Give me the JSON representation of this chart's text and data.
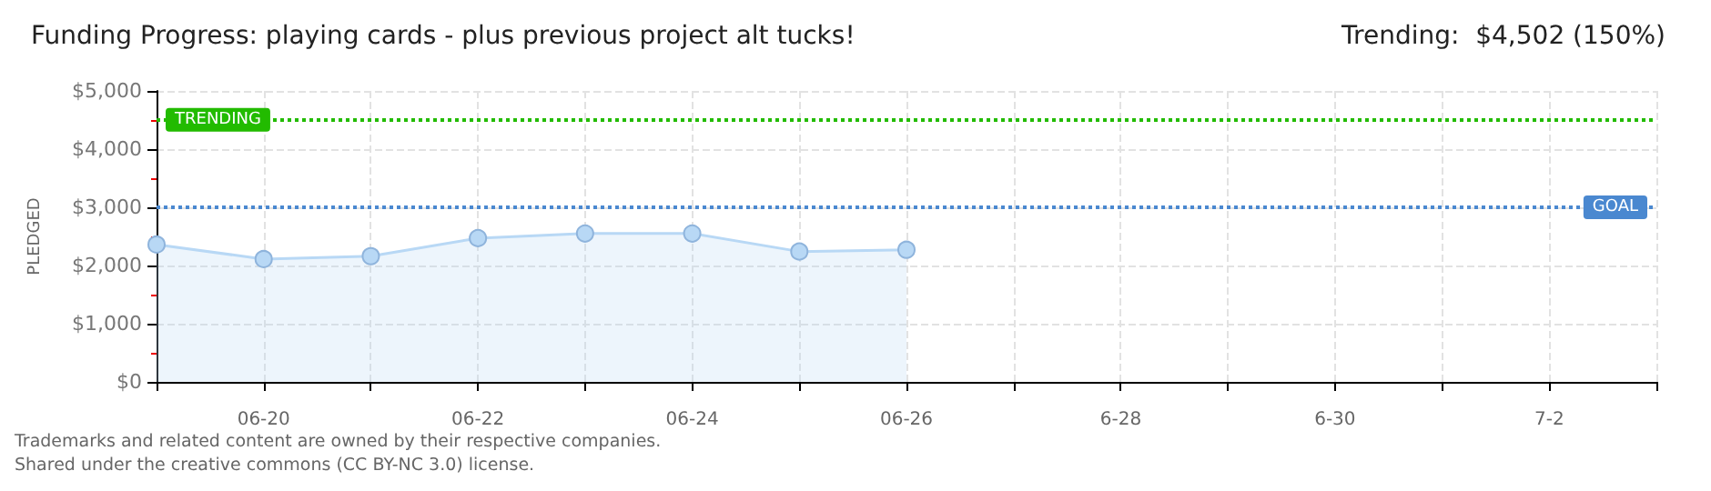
{
  "chart_data": {
    "type": "area",
    "title": "Funding Progress: playing cards - plus previous project alt tucks!",
    "subtitle": "Trending:  $4,502 (150%)",
    "ylabel": "PLEDGED",
    "categories": [
      null,
      "06-20",
      null,
      "06-22",
      null,
      "06-24",
      null,
      "06-26",
      null,
      "6-28",
      null,
      "6-30",
      null,
      "7-2",
      null
    ],
    "series": [
      {
        "color": "#b8d8f5",
        "values": [
          2360,
          2110,
          2160,
          2470,
          2550,
          2550,
          2240,
          2270,
          null,
          null,
          null,
          null,
          null,
          null,
          null
        ]
      }
    ],
    "ylim": [
      0,
      5000
    ],
    "yticks": [
      {
        "value": 0,
        "label": "$0"
      },
      {
        "value": 1000,
        "label": "$1,000"
      },
      {
        "value": 2000,
        "label": "$2,000"
      },
      {
        "value": 3000,
        "label": "$3,000"
      },
      {
        "value": 4000,
        "label": "$4,000"
      },
      {
        "value": 5000,
        "label": "$5,000"
      }
    ],
    "ref_lines": [
      {
        "axis": "y",
        "value": 4502,
        "label": "TRENDING",
        "color": "#22bb00",
        "line_style": "dotted"
      },
      {
        "axis": "y",
        "value": 3000,
        "label": "GOAL",
        "color": "#4a88d0",
        "line_style": "dotted"
      }
    ],
    "annotations": [
      "Trademarks and related content are owned by their respective companies.",
      "Shared under the creative commons (CC BY-NC 3.0) license."
    ],
    "grid": true,
    "marker": "circle"
  }
}
